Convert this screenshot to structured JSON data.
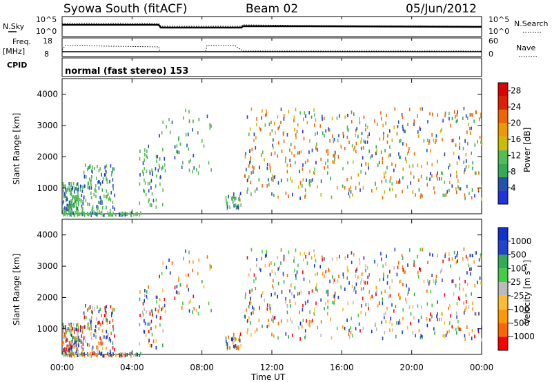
{
  "header": {
    "station": "Syowa South (fitACF)",
    "beam": "Beam 02",
    "date": "05/Jun/2012"
  },
  "top_panels": {
    "nsky_label": "N.Sky",
    "nsky_tick_top": "10^5",
    "nsky_tick_bottom": "10^0",
    "nsearch_label": "N.Search",
    "nsearch_tick_top": "10^5",
    "nsearch_tick_bottom": "10^0",
    "freq_label": "Freq.",
    "freq_unit": "[MHz]",
    "freq_tick_top": "18",
    "freq_tick_bottom": "8",
    "nave_label": "Nave",
    "nave_tick_top": "60",
    "nave_tick_bottom": "0",
    "cpid_label": "CPID",
    "cpid_text": "normal (fast stereo) 153"
  },
  "colors": {
    "power_scale": [
      "#2233dd",
      "#2255aa",
      "#33aa55",
      "#55bb55",
      "#ccbb00",
      "#ee9900",
      "#ee6600",
      "#dd2200",
      "#dd0000"
    ],
    "velocity_scale": [
      "#ff0000",
      "#ff6600",
      "#ff9900",
      "#ffbb33",
      "#bbbbbb",
      "#44cc44",
      "#33aa55",
      "#2244cc",
      "#1133cc"
    ]
  },
  "chart_data": [
    {
      "type": "heatmap",
      "name": "power",
      "ylabel": "Slant Range [km]",
      "xlabel": "Time UT",
      "x_ticks": [
        "00:00",
        "04:00",
        "08:00",
        "12:00",
        "16:00",
        "20:00",
        "00:00"
      ],
      "y_ticks": [
        "1000",
        "2000",
        "3000",
        "4000"
      ],
      "xlim_hours": [
        0,
        24
      ],
      "ylim_km": [
        180,
        4500
      ],
      "colorbar": {
        "label": "Power [dB]",
        "ticks": [
          "4",
          "8",
          "12",
          "16",
          "20",
          "24",
          "28"
        ],
        "range": [
          0,
          30
        ]
      }
    },
    {
      "type": "heatmap",
      "name": "velocity",
      "ylabel": "Slant Range [km]",
      "xlabel": "Time UT",
      "x_ticks": [
        "00:00",
        "04:00",
        "08:00",
        "12:00",
        "16:00",
        "20:00",
        "00:00"
      ],
      "y_ticks": [
        "1000",
        "2000",
        "3000",
        "4000"
      ],
      "xlim_hours": [
        0,
        24
      ],
      "ylim_km": [
        180,
        4500
      ],
      "colorbar": {
        "label": "Velocity [m s⁻¹]",
        "ticks": [
          "1000",
          "500",
          "100",
          "25",
          "-25",
          "-100",
          "-500",
          "-1000"
        ]
      }
    }
  ],
  "x_axis_title": "Time UT"
}
